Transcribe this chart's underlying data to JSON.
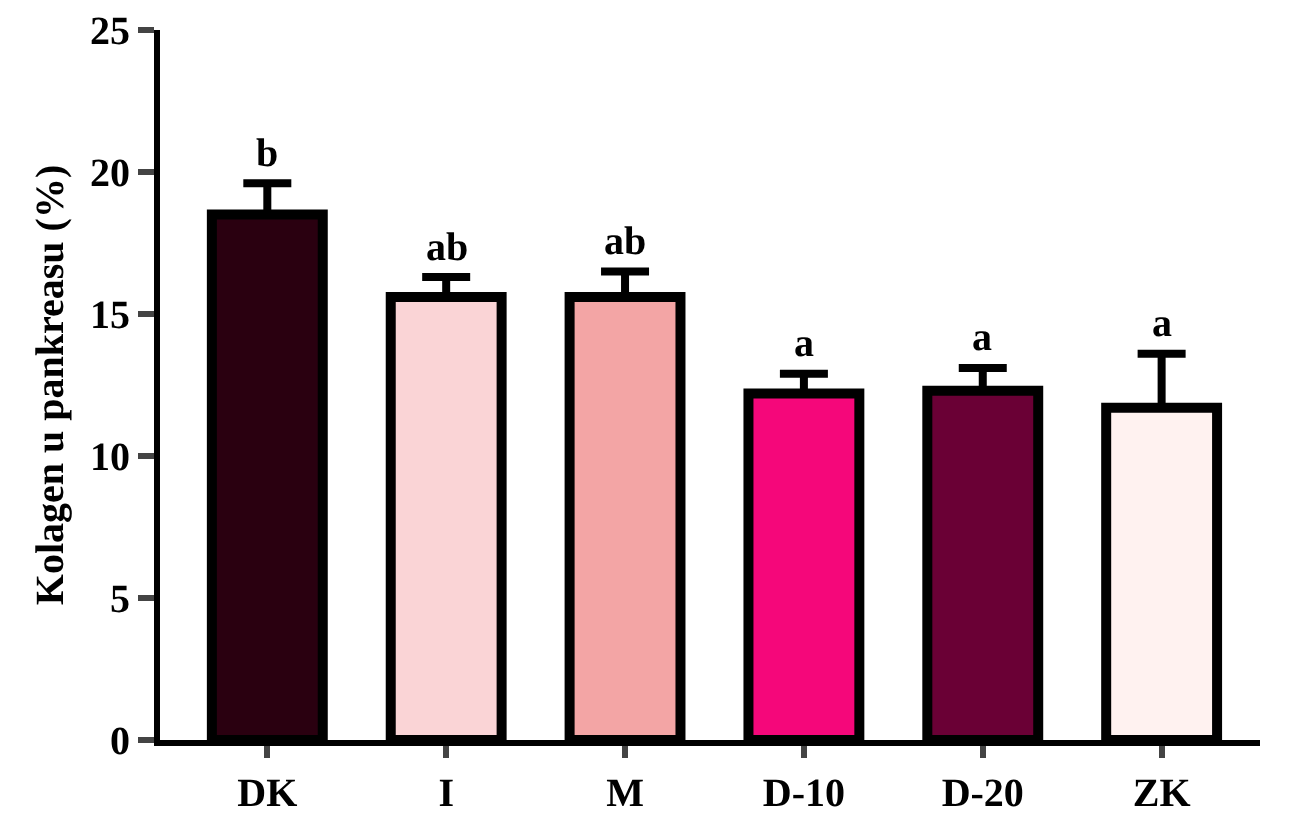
{
  "chart_data": {
    "type": "bar",
    "ylabel": "Kolagen u pankreasu (%)",
    "categories": [
      "DK",
      "I",
      "M",
      "D-10",
      "D-20",
      "ZK"
    ],
    "values": [
      18.5,
      15.6,
      15.6,
      12.2,
      12.3,
      11.7
    ],
    "colors": [
      "#2a0010",
      "#fad4d6",
      "#f3a5a5",
      "#f5077a",
      "#6a0035",
      "#fff2f0"
    ],
    "errors": [
      [
        18.5,
        19.6
      ],
      [
        15.6,
        16.3
      ],
      [
        15.6,
        16.5
      ],
      [
        12.2,
        12.9
      ],
      [
        12.3,
        13.1
      ],
      [
        11.7,
        13.6
      ]
    ],
    "annotations": [
      {
        "text": "b",
        "x": "DK",
        "y": 19.6
      },
      {
        "text": "ab",
        "x": "I",
        "y": 16.3
      },
      {
        "text": "ab",
        "x": "M",
        "y": 16.5
      },
      {
        "text": "a",
        "x": "D-10",
        "y": 12.9
      },
      {
        "text": "a",
        "x": "D-20",
        "y": 13.1
      },
      {
        "text": "a",
        "x": "ZK",
        "y": 13.6
      }
    ],
    "ylim": [
      0,
      25
    ],
    "yticks": [
      0,
      5,
      10,
      15,
      20,
      25
    ],
    "grid": false
  }
}
